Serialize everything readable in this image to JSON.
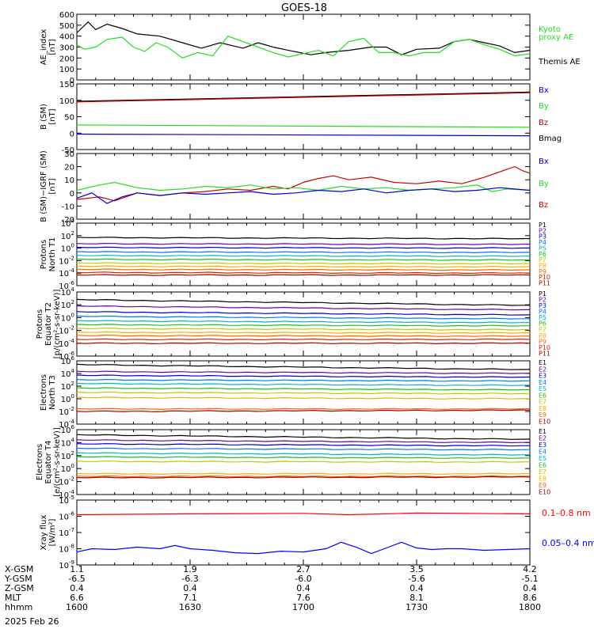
{
  "title": "GOES-18",
  "date_label": "2025 Feb 26",
  "colors": {
    "black": "#000000",
    "green": "#22dd22",
    "red": "#cc0000",
    "blue": "#0000cc",
    "brightred": "#ff0000",
    "bluebright": "#0000ff"
  },
  "x_axis": {
    "row_labels": [
      "X-GSM",
      "Y-GSM",
      "Z-GSM",
      "MLT",
      "hhmm"
    ],
    "ticks": [
      {
        "hhmm": "1600",
        "x_gsm": "1.1",
        "y_gsm": "-6.5",
        "z_gsm": "0.4",
        "mlt": "6.6"
      },
      {
        "hhmm": "1630",
        "x_gsm": "1.9",
        "y_gsm": "-6.3",
        "z_gsm": "0.4",
        "mlt": "7.1"
      },
      {
        "hhmm": "1700",
        "x_gsm": "2.7",
        "y_gsm": "-6.0",
        "z_gsm": "0.4",
        "mlt": "7.6"
      },
      {
        "hhmm": "1730",
        "x_gsm": "3.5",
        "y_gsm": "-5.6",
        "z_gsm": "0.4",
        "mlt": "8.1"
      },
      {
        "hhmm": "1800",
        "x_gsm": "4.2",
        "y_gsm": "-5.1",
        "z_gsm": "0.4",
        "mlt": "8.6"
      }
    ],
    "xlim_minutes": [
      0,
      120
    ]
  },
  "chart_data": [
    {
      "type": "line",
      "ylabel": "AE_index [nT]",
      "scale": "linear",
      "ylim": [
        0,
        600
      ],
      "yticks": [
        0,
        100,
        200,
        300,
        400,
        500,
        600
      ],
      "legend": [
        {
          "text": "Kyoto",
          "color": "#22dd22"
        },
        {
          "text": "proxy AE",
          "color": "#22dd22"
        },
        {
          "text": "",
          "color": null
        },
        {
          "text": "Themis AE",
          "color": "#000000"
        }
      ],
      "series": [
        {
          "name": "Themis AE",
          "color": "#000000",
          "x": [
            0,
            3,
            5,
            8,
            12,
            16,
            22,
            28,
            33,
            38,
            44,
            48,
            52,
            56,
            62,
            66,
            72,
            78,
            82,
            86,
            90,
            96,
            100,
            104,
            108,
            112,
            116,
            120
          ],
          "y": [
            430,
            530,
            460,
            510,
            470,
            420,
            400,
            340,
            290,
            340,
            290,
            340,
            300,
            270,
            230,
            250,
            270,
            300,
            300,
            230,
            280,
            290,
            350,
            370,
            340,
            310,
            250,
            270
          ]
        },
        {
          "name": "Kyoto proxy AE",
          "color": "#22dd22",
          "x": [
            0,
            2,
            5,
            8,
            12,
            15,
            18,
            21,
            24,
            28,
            32,
            36,
            40,
            44,
            48,
            52,
            56,
            60,
            64,
            68,
            72,
            76,
            80,
            84,
            88,
            92,
            96,
            100,
            104,
            108,
            112,
            116,
            120
          ],
          "y": [
            320,
            280,
            300,
            370,
            390,
            300,
            260,
            340,
            300,
            200,
            250,
            220,
            400,
            350,
            300,
            250,
            210,
            240,
            270,
            220,
            350,
            380,
            250,
            250,
            220,
            250,
            250,
            350,
            370,
            320,
            280,
            220,
            240
          ]
        }
      ]
    },
    {
      "type": "line",
      "ylabel": "B (SM) [nT]",
      "scale": "linear",
      "ylim": [
        -50,
        150
      ],
      "yticks": [
        -50,
        0,
        50,
        100,
        150
      ],
      "legend": [
        {
          "text": "Bx",
          "color": "#0000cc"
        },
        {
          "text": "By",
          "color": "#22dd22"
        },
        {
          "text": "Bz",
          "color": "#cc0000"
        },
        {
          "text": "Bmag",
          "color": "#000000"
        }
      ],
      "series": [
        {
          "name": "Bmag",
          "color": "#000000",
          "x": [
            0,
            120
          ],
          "y": [
            97,
            125
          ]
        },
        {
          "name": "Bz",
          "color": "#cc0000",
          "x": [
            0,
            120
          ],
          "y": [
            95,
            123
          ]
        },
        {
          "name": "By",
          "color": "#22dd22",
          "x": [
            0,
            120
          ],
          "y": [
            25,
            18
          ]
        },
        {
          "name": "Bx",
          "color": "#0000cc",
          "x": [
            0,
            120
          ],
          "y": [
            -3,
            -8
          ]
        }
      ]
    },
    {
      "type": "line",
      "ylabel": "B (SM)-IGRF (SM) [nT]",
      "scale": "linear",
      "ylim": [
        -20,
        30
      ],
      "yticks": [
        -20,
        -10,
        0,
        10,
        20,
        30
      ],
      "legend": [
        {
          "text": "Bx",
          "color": "#0000cc"
        },
        {
          "text": "By",
          "color": "#22dd22"
        },
        {
          "text": "Bz",
          "color": "#cc0000"
        }
      ],
      "series": [
        {
          "name": "Bz",
          "color": "#cc0000",
          "x": [
            0,
            6,
            10,
            16,
            22,
            28,
            34,
            40,
            46,
            52,
            56,
            60,
            64,
            68,
            72,
            78,
            84,
            90,
            96,
            102,
            108,
            112,
            116,
            118,
            120
          ],
          "y": [
            -5,
            -3,
            -6,
            0,
            -2,
            0,
            1,
            3,
            2,
            5,
            3,
            8,
            11,
            13,
            10,
            12,
            8,
            7,
            9,
            7,
            12,
            16,
            20,
            17,
            15
          ]
        },
        {
          "name": "By",
          "color": "#22dd22",
          "x": [
            0,
            6,
            10,
            16,
            22,
            28,
            34,
            40,
            46,
            52,
            58,
            64,
            70,
            76,
            82,
            88,
            94,
            100,
            106,
            110,
            114,
            120
          ],
          "y": [
            2,
            6,
            8,
            4,
            2,
            3,
            5,
            4,
            6,
            3,
            4,
            2,
            5,
            3,
            4,
            2,
            3,
            4,
            6,
            1,
            3,
            2
          ]
        },
        {
          "name": "Bx",
          "color": "#0000cc",
          "x": [
            0,
            4,
            8,
            12,
            16,
            22,
            28,
            34,
            40,
            46,
            52,
            58,
            64,
            70,
            76,
            82,
            88,
            94,
            100,
            106,
            112,
            120
          ],
          "y": [
            -4,
            0,
            -8,
            -3,
            0,
            -2,
            0,
            -1,
            0,
            1,
            -1,
            0,
            2,
            1,
            3,
            0,
            2,
            3,
            1,
            2,
            4,
            2
          ]
        }
      ]
    },
    {
      "type": "line",
      "ylabel": "Protons North T1",
      "scale": "log",
      "ylim_exp": [
        -6,
        4
      ],
      "ytick_exps": [
        -6,
        -4,
        -2,
        0,
        2,
        4
      ],
      "legend": [
        {
          "text": "P1"
        },
        {
          "text": "P2"
        },
        {
          "text": "P3"
        },
        {
          "text": "P4"
        },
        {
          "text": "P5"
        },
        {
          "text": "P6"
        },
        {
          "text": "P7"
        },
        {
          "text": "P8"
        },
        {
          "text": "P9"
        },
        {
          "text": "P10"
        },
        {
          "text": "P11"
        }
      ],
      "series": [
        {
          "name": "P1",
          "color": "#000000",
          "y_exp": [
            1.7,
            1.5
          ]
        },
        {
          "name": "P2",
          "color": "#6a00a8",
          "y_exp": [
            0.7,
            0.6
          ]
        },
        {
          "name": "P3",
          "color": "#0000cc",
          "y_exp": [
            0.1,
            0.0
          ]
        },
        {
          "name": "P4",
          "color": "#0077ff",
          "y_exp": [
            -0.6,
            -0.7
          ]
        },
        {
          "name": "P5",
          "color": "#00bbbb",
          "y_exp": [
            -1.2,
            -1.3
          ]
        },
        {
          "name": "P6",
          "color": "#22bb22",
          "y_exp": [
            -1.8,
            -1.9
          ]
        },
        {
          "name": "P7",
          "color": "#bbcc00",
          "y_exp": [
            -2.4,
            -2.5
          ]
        },
        {
          "name": "P8",
          "color": "#ffaa00",
          "y_exp": [
            -2.9,
            -3.0
          ]
        },
        {
          "name": "P9",
          "color": "#ff6600",
          "y_exp": [
            -3.4,
            -3.5
          ]
        },
        {
          "name": "P10",
          "color": "#dd2200",
          "y_exp": [
            -3.9,
            -4.0
          ]
        },
        {
          "name": "P11",
          "color": "#aa0000",
          "y_exp": [
            -4.3,
            -4.3
          ]
        }
      ]
    },
    {
      "type": "line",
      "ylabel": "Protons Equator T2 [p/(cm²-s-sr-keV)]",
      "scale": "log",
      "ylim_exp": [
        -6,
        4
      ],
      "ytick_exps": [
        -6,
        -4,
        -2,
        0,
        2,
        4
      ],
      "legend": [
        {
          "text": "P1"
        },
        {
          "text": "P2"
        },
        {
          "text": "P3"
        },
        {
          "text": "P4"
        },
        {
          "text": "P5"
        },
        {
          "text": "P6"
        },
        {
          "text": "P7"
        },
        {
          "text": "P8"
        },
        {
          "text": "P9"
        },
        {
          "text": "P10"
        },
        {
          "text": "P11"
        }
      ],
      "series": [
        {
          "name": "P1",
          "color": "#000000",
          "y_exp": [
            2.8,
            1.9
          ]
        },
        {
          "name": "P2",
          "color": "#6a00a8",
          "y_exp": [
            1.8,
            1.2
          ]
        },
        {
          "name": "P3",
          "color": "#0000cc",
          "y_exp": [
            0.9,
            0.4
          ]
        },
        {
          "name": "P4",
          "color": "#0077ff",
          "y_exp": [
            0.2,
            -0.2
          ]
        },
        {
          "name": "P5",
          "color": "#00bbbb",
          "y_exp": [
            -0.5,
            -0.8
          ]
        },
        {
          "name": "P6",
          "color": "#22bb22",
          "y_exp": [
            -1.1,
            -1.3
          ]
        },
        {
          "name": "P7",
          "color": "#bbcc00",
          "y_exp": [
            -1.7,
            -1.9
          ]
        },
        {
          "name": "P8",
          "color": "#ffaa00",
          "y_exp": [
            -2.3,
            -2.4
          ]
        },
        {
          "name": "P9",
          "color": "#ff6600",
          "y_exp": [
            -2.8,
            -2.9
          ]
        },
        {
          "name": "P10",
          "color": "#dd2200",
          "y_exp": [
            -3.4,
            -3.4
          ]
        },
        {
          "name": "P11",
          "color": "#aa0000",
          "y_exp": [
            -4.0,
            -4.0
          ]
        }
      ]
    },
    {
      "type": "line",
      "ylabel": "Electrons North T3",
      "scale": "log",
      "ylim_exp": [
        -4,
        6
      ],
      "ytick_exps": [
        -4,
        -2,
        0,
        2,
        4,
        6
      ],
      "legend": [
        {
          "text": "E1"
        },
        {
          "text": "E2"
        },
        {
          "text": "E3"
        },
        {
          "text": "E4"
        },
        {
          "text": "E5"
        },
        {
          "text": "E6"
        },
        {
          "text": "E7"
        },
        {
          "text": "E8"
        },
        {
          "text": "E9"
        },
        {
          "text": "E10"
        }
      ],
      "series": [
        {
          "name": "E1",
          "color": "#000000",
          "y_exp": [
            5.4,
            4.6
          ]
        },
        {
          "name": "E2",
          "color": "#6a00a8",
          "y_exp": [
            4.3,
            4.0
          ]
        },
        {
          "name": "E3",
          "color": "#0000cc",
          "y_exp": [
            3.7,
            3.4
          ]
        },
        {
          "name": "E4",
          "color": "#0077ff",
          "y_exp": [
            3.0,
            2.8
          ]
        },
        {
          "name": "E5",
          "color": "#00bbbb",
          "y_exp": [
            2.4,
            2.1
          ]
        },
        {
          "name": "E6",
          "color": "#22bb22",
          "y_exp": [
            1.7,
            1.4
          ]
        },
        {
          "name": "E7",
          "color": "#bbcc00",
          "y_exp": [
            1.0,
            0.8
          ]
        },
        {
          "name": "E8",
          "color": "#ffaa00",
          "y_exp": [
            0.2,
            0.0
          ]
        },
        {
          "name": "E9",
          "color": "#ff6600",
          "y_exp": [
            -1.6,
            -1.6
          ]
        },
        {
          "name": "E10",
          "color": "#aa0000",
          "y_exp": [
            -2.0,
            -1.8
          ]
        }
      ]
    },
    {
      "type": "line",
      "ylabel": "Electrons Equator T4 [e/(cm²-s-sr-keV)]",
      "scale": "log",
      "ylim_exp": [
        -4,
        6
      ],
      "ytick_exps": [
        -4,
        -2,
        0,
        2,
        4,
        6
      ],
      "legend": [
        {
          "text": "E1"
        },
        {
          "text": "E2"
        },
        {
          "text": "E3"
        },
        {
          "text": "E4"
        },
        {
          "text": "E5"
        },
        {
          "text": "E6"
        },
        {
          "text": "E7"
        },
        {
          "text": "E8"
        },
        {
          "text": "E9"
        },
        {
          "text": "E10"
        }
      ],
      "series": [
        {
          "name": "E1",
          "color": "#000000",
          "y_exp": [
            5.2,
            4.5
          ]
        },
        {
          "name": "E2",
          "color": "#6a00a8",
          "y_exp": [
            4.4,
            4.0
          ]
        },
        {
          "name": "E3",
          "color": "#0000cc",
          "y_exp": [
            3.8,
            3.5
          ]
        },
        {
          "name": "E4",
          "color": "#0077ff",
          "y_exp": [
            3.1,
            2.9
          ]
        },
        {
          "name": "E5",
          "color": "#00bbbb",
          "y_exp": [
            2.4,
            2.1
          ]
        },
        {
          "name": "E6",
          "color": "#22bb22",
          "y_exp": [
            1.8,
            1.6
          ]
        },
        {
          "name": "E7",
          "color": "#bbcc00",
          "y_exp": [
            1.1,
            1.0
          ]
        },
        {
          "name": "E8",
          "color": "#ffaa00",
          "y_exp": [
            -0.8,
            -0.8
          ]
        },
        {
          "name": "E9",
          "color": "#ff6600",
          "y_exp": [
            -1.2,
            -1.2
          ]
        },
        {
          "name": "E10",
          "color": "#aa0000",
          "y_exp": [
            -1.4,
            -1.3
          ]
        }
      ]
    },
    {
      "type": "line",
      "ylabel": "Xray flux [W/m²]",
      "scale": "log",
      "ylim_exp": [
        -9,
        -5
      ],
      "ytick_exps": [
        -9,
        -8,
        -7,
        -6,
        -5
      ],
      "legend": [
        {
          "text": "0.1–0.8 nm",
          "color": "#ff0000"
        },
        {
          "text": "0.05–0.4 nm",
          "color": "#0000ff"
        }
      ],
      "series": [
        {
          "name": "0.1–0.8 nm",
          "color": "#ff0000",
          "x": [
            0,
            30,
            60,
            72,
            90,
            120
          ],
          "y_exp": [
            -5.9,
            -5.85,
            -5.82,
            -5.9,
            -5.8,
            -5.85
          ]
        },
        {
          "name": "0.05–0.4 nm",
          "color": "#0000ff",
          "x": [
            0,
            4,
            10,
            16,
            22,
            26,
            30,
            36,
            42,
            48,
            54,
            60,
            66,
            70,
            74,
            78,
            82,
            86,
            90,
            94,
            98,
            102,
            108,
            114,
            120
          ],
          "y_exp": [
            -8.2,
            -8.0,
            -8.05,
            -7.9,
            -8.0,
            -7.8,
            -8.0,
            -8.1,
            -8.25,
            -8.3,
            -8.15,
            -8.2,
            -8.0,
            -7.6,
            -7.9,
            -8.3,
            -7.95,
            -7.6,
            -7.95,
            -8.05,
            -8.0,
            -8.0,
            -8.1,
            -8.05,
            -8.0
          ]
        }
      ]
    }
  ]
}
